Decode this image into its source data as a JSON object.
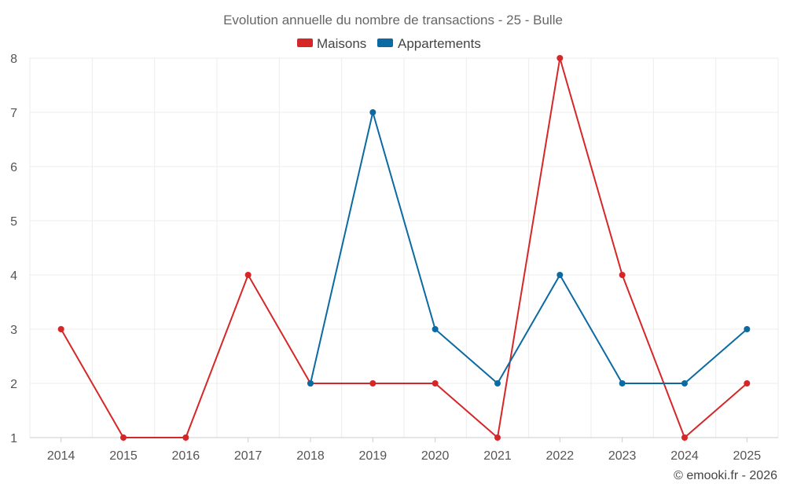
{
  "chart_data": {
    "type": "line",
    "title": "Evolution annuelle du nombre de transactions - 25 - Bulle",
    "categories": [
      "2014",
      "2015",
      "2016",
      "2017",
      "2018",
      "2019",
      "2020",
      "2021",
      "2022",
      "2023",
      "2024",
      "2025"
    ],
    "series": [
      {
        "name": "Maisons",
        "color": "#d62728",
        "values": [
          3,
          1,
          1,
          4,
          2,
          2,
          2,
          1,
          8,
          4,
          1,
          2
        ]
      },
      {
        "name": "Appartements",
        "color": "#0b6aa2",
        "values": [
          null,
          null,
          null,
          null,
          2,
          7,
          3,
          2,
          4,
          2,
          2,
          3
        ]
      }
    ],
    "ylim": [
      1,
      8
    ],
    "yticks": [
      1,
      2,
      3,
      4,
      5,
      6,
      7,
      8
    ],
    "xlabel": "",
    "ylabel": "",
    "grid": true,
    "legend": "top-center"
  },
  "credit": "© emooki.fr - 2026"
}
